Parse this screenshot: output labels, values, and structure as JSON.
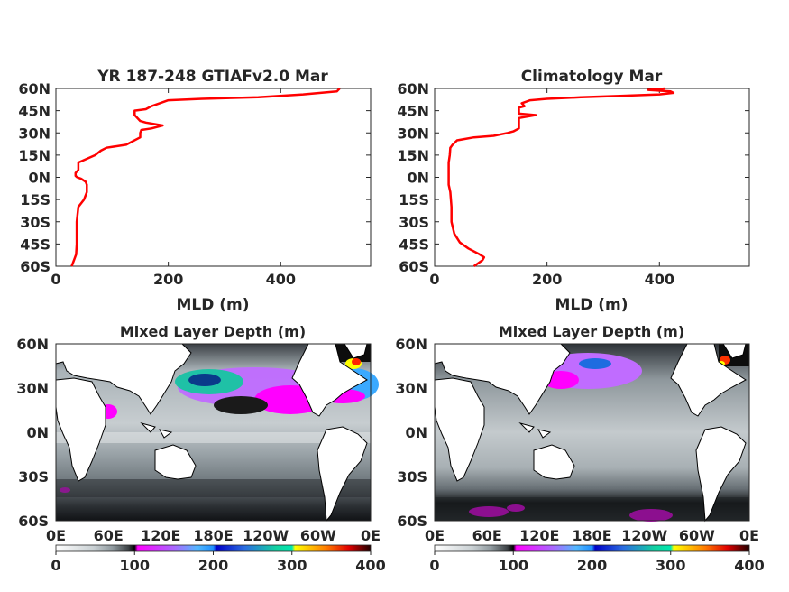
{
  "chart_data": [
    {
      "type": "line",
      "title": "YR 187-248 GTIAFv2.0 Mar",
      "xlabel": "MLD (m)",
      "ylabel": "",
      "xlim": [
        0,
        560
      ],
      "ylim": [
        -60,
        60
      ],
      "xticks": [
        "0",
        "200",
        "400"
      ],
      "yticks": [
        "60N",
        "45N",
        "30N",
        "15N",
        "0N",
        "15S",
        "30S",
        "45S",
        "60S"
      ],
      "series": [
        {
          "color": "#ff0000",
          "x": [
            28,
            33,
            36,
            37,
            37,
            37,
            40,
            50,
            55,
            55,
            53,
            45,
            38,
            35,
            35,
            40,
            40,
            70,
            80,
            90,
            125,
            150,
            150,
            152,
            170,
            190,
            160,
            150,
            140,
            140,
            160,
            170,
            200,
            260,
            360,
            440,
            500,
            505
          ],
          "y": [
            -60,
            -55,
            -52,
            -45,
            -40,
            -30,
            -20,
            -15,
            -10,
            -5,
            -3,
            -1,
            0,
            1,
            3,
            5,
            10,
            15,
            18,
            20,
            22,
            27,
            30,
            32,
            33,
            35,
            37,
            38,
            42,
            45,
            46,
            48,
            52,
            53,
            54,
            56,
            58,
            60
          ]
        }
      ]
    },
    {
      "type": "line",
      "title": "Climatology Mar",
      "xlabel": "MLD (m)",
      "ylabel": "",
      "xlim": [
        0,
        560
      ],
      "ylim": [
        -60,
        60
      ],
      "xticks": [
        "0",
        "200",
        "400"
      ],
      "yticks": [
        "60N",
        "45N",
        "30N",
        "15N",
        "0N",
        "15S",
        "30S",
        "45S",
        "60S"
      ],
      "series": [
        {
          "color": "#ff0000",
          "x": [
            70,
            85,
            88,
            80,
            60,
            45,
            35,
            30,
            30,
            28,
            25,
            25,
            25,
            25,
            27,
            28,
            32,
            40,
            70,
            105,
            130,
            140,
            150,
            150,
            180,
            150,
            150,
            160,
            155,
            170,
            200,
            260,
            330,
            400,
            425,
            420,
            380,
            410
          ],
          "y": [
            -60,
            -56,
            -54,
            -52,
            -48,
            -44,
            -38,
            -30,
            -20,
            -10,
            -5,
            0,
            5,
            10,
            15,
            20,
            22,
            25,
            27,
            28,
            30,
            31,
            33,
            40,
            42,
            43,
            47,
            48,
            50,
            52,
            53,
            54,
            55,
            56,
            57,
            58,
            59,
            60
          ]
        }
      ]
    },
    {
      "type": "heatmap",
      "title": "Mixed Layer Depth (m)",
      "xticks": [
        "0E",
        "60E",
        "120E",
        "180E",
        "120W",
        "60W",
        "0E"
      ],
      "yticks": [
        "60N",
        "30N",
        "0N",
        "30S",
        "60S"
      ],
      "colorbar_ticks": [
        "0",
        "100",
        "200",
        "300",
        "400"
      ],
      "range": [
        0,
        400
      ]
    },
    {
      "type": "heatmap",
      "title": "Mixed Layer Depth (m)",
      "xticks": [
        "0E",
        "60E",
        "120E",
        "180E",
        "120W",
        "60W",
        "0E"
      ],
      "yticks": [
        "60N",
        "30N",
        "0N",
        "30S",
        "60S"
      ],
      "colorbar_ticks": [
        "0",
        "100",
        "200",
        "300",
        "400"
      ],
      "range": [
        0,
        400
      ]
    }
  ]
}
